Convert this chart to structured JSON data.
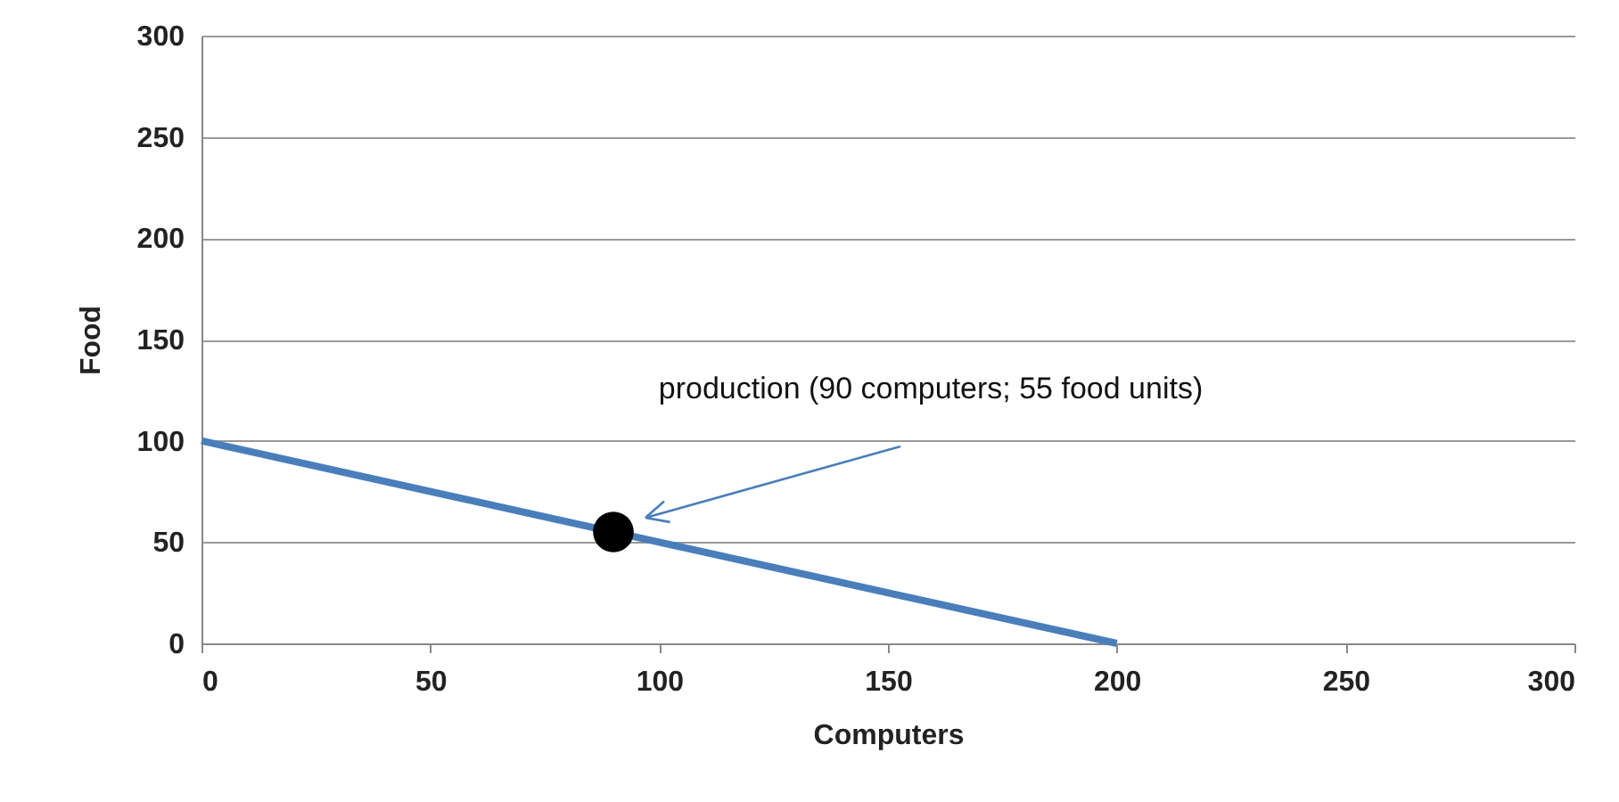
{
  "chart_data": {
    "type": "line",
    "xlabel": "Computers",
    "ylabel": "Food",
    "xlim": [
      0,
      300
    ],
    "ylim": [
      0,
      300
    ],
    "xticks": [
      0,
      50,
      100,
      150,
      200,
      250,
      300
    ],
    "yticks": [
      0,
      50,
      100,
      150,
      200,
      250,
      300
    ],
    "grid": "y",
    "line_style": "solid",
    "series": [
      {
        "type": "line",
        "color": "#4a7ebb",
        "x": [
          0,
          200
        ],
        "values": [
          100,
          0
        ]
      },
      {
        "type": "scatter",
        "color": "#000000",
        "marker": "circle",
        "x": [
          90
        ],
        "values": [
          55
        ]
      }
    ],
    "annotations": [
      "production (90 computers; 55 food units)"
    ]
  }
}
